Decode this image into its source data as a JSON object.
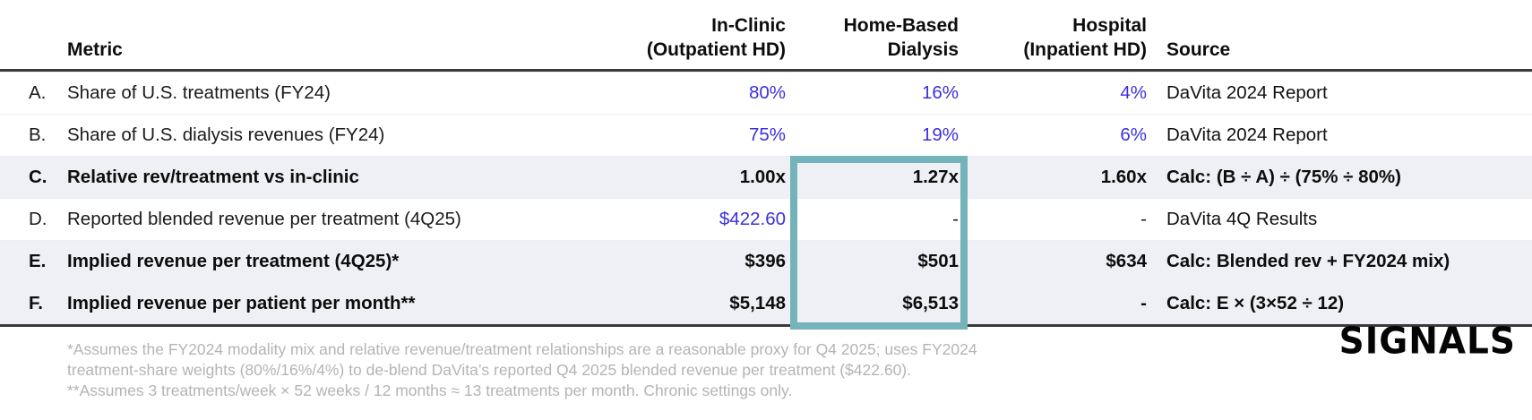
{
  "chart_data": {
    "type": "table",
    "columns": [
      "Metric",
      "In-Clinic (Outpatient HD)",
      "Home-Based Dialysis",
      "Hospital (Inpatient HD)",
      "Source"
    ],
    "rows": [
      [
        "A.",
        "Share of U.S. treatments (FY24)",
        "80%",
        "16%",
        "4%",
        "DaVita 2024 Report"
      ],
      [
        "B.",
        "Share of U.S. dialysis revenues (FY24)",
        "75%",
        "19%",
        "6%",
        "DaVita 2024 Report"
      ],
      [
        "C.",
        "Relative rev/treatment vs in-clinic",
        "1.00x",
        "1.27x",
        "1.60x",
        "Calc: (B ÷ A) ÷ (75% ÷ 80%)"
      ],
      [
        "D.",
        "Reported blended revenue per treatment (4Q25)",
        "$422.60",
        "-",
        "-",
        "DaVita 4Q Results"
      ],
      [
        "E.",
        "Implied revenue per treatment (4Q25)*",
        "$396",
        "$501",
        "$634",
        "Calc: Blended rev + FY2024 mix)"
      ],
      [
        "F.",
        "Implied revenue per patient per month**",
        "$5,148",
        "$6,513",
        "-",
        "Calc: E × (3×52 ÷ 12)"
      ]
    ],
    "highlight": "Home-Based Dialysis column rows C–F outlined in teal"
  },
  "header": {
    "metric": "Metric",
    "col1_line1": "In-Clinic",
    "col1_line2": "(Outpatient HD)",
    "col2_line1": "Home-Based",
    "col2_line2": "Dialysis",
    "col3_line1": "Hospital",
    "col3_line2": "(Inpatient HD)",
    "source": "Source"
  },
  "table": {
    "rows": [
      {
        "letter": "A.",
        "metric": "Share of U.S. treatments (FY24)",
        "v1": "80%",
        "v2": "16%",
        "v3": "4%",
        "source": "DaVita 2024 Report"
      },
      {
        "letter": "B.",
        "metric": "Share of U.S. dialysis revenues (FY24)",
        "v1": "75%",
        "v2": "19%",
        "v3": "6%",
        "source": "DaVita 2024 Report"
      },
      {
        "letter": "C.",
        "metric": "Relative rev/treatment vs in-clinic",
        "v1": "1.00x",
        "v2": "1.27x",
        "v3": "1.60x",
        "source": "Calc: (B ÷ A) ÷ (75% ÷ 80%)"
      },
      {
        "letter": "D.",
        "metric": "Reported blended revenue per treatment (4Q25)",
        "v1": "$422.60",
        "v2": "-",
        "v3": "-",
        "source": "DaVita 4Q Results"
      },
      {
        "letter": "E.",
        "metric": "Implied revenue per treatment (4Q25)*",
        "v1": "$396",
        "v2": "$501",
        "v3": "$634",
        "source": "Calc: Blended rev + FY2024 mix)"
      },
      {
        "letter": "F.",
        "metric": "Implied revenue per patient per month**",
        "v1": "$5,148",
        "v2": "$6,513",
        "v3": "-",
        "source": "Calc: E × (3×52 ÷ 12)"
      }
    ]
  },
  "footnotes": {
    "line1": "*Assumes the FY2024 modality mix and relative revenue/treatment relationships are a reasonable proxy for Q4 2025; uses FY2024",
    "line2": "treatment-share weights (80%/16%/4%) to de-blend DaVita’s reported Q4 2025 blended revenue per treatment ($422.60).",
    "line3": "**Assumes 3 treatments/week × 52 weeks / 12 months ≈ 13 treatments per month. Chronic settings only."
  },
  "logo": {
    "text": "SIGNALS"
  },
  "colors": {
    "value_blue": "#3a31dc",
    "highlight_teal": "#74b3b9",
    "row_stripe": "#eef0f5",
    "rule_dark": "#3a3a3a",
    "footnote_gray": "#b4b4b4"
  }
}
